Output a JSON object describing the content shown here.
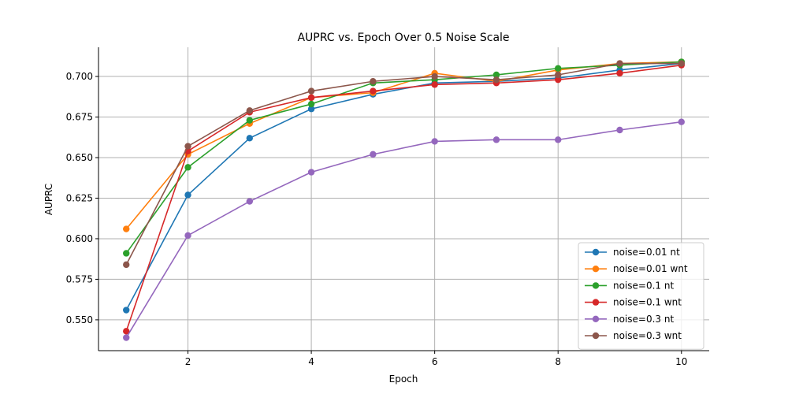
{
  "chart_data": {
    "type": "line",
    "title": "AUPRC vs. Epoch Over 0.5 Noise Scale",
    "xlabel": "Epoch",
    "ylabel": "AUPRC",
    "xlim": [
      0.55,
      10.45
    ],
    "ylim": [
      0.531,
      0.718
    ],
    "x_ticks": [
      2,
      4,
      6,
      8,
      10
    ],
    "y_ticks": [
      0.55,
      0.575,
      0.6,
      0.625,
      0.65,
      0.675,
      0.7
    ],
    "grid": true,
    "legend_position": "lower-right",
    "x": [
      1,
      2,
      3,
      4,
      5,
      6,
      7,
      8,
      9,
      10
    ],
    "series": [
      {
        "name": "noise=0.01 nt",
        "color": "#1f77b4",
        "values": [
          0.556,
          0.627,
          0.662,
          0.68,
          0.689,
          0.696,
          0.697,
          0.699,
          0.704,
          0.708
        ]
      },
      {
        "name": "noise=0.01 wnt",
        "color": "#ff7f0e",
        "values": [
          0.606,
          0.652,
          0.671,
          0.687,
          0.69,
          0.702,
          0.697,
          0.704,
          0.708,
          0.709
        ]
      },
      {
        "name": "noise=0.1 nt",
        "color": "#2ca02c",
        "values": [
          0.591,
          0.644,
          0.673,
          0.683,
          0.696,
          0.698,
          0.701,
          0.705,
          0.707,
          0.709
        ]
      },
      {
        "name": "noise=0.1 wnt",
        "color": "#d62728",
        "values": [
          0.543,
          0.654,
          0.678,
          0.687,
          0.691,
          0.695,
          0.696,
          0.698,
          0.702,
          0.707
        ]
      },
      {
        "name": "noise=0.3 nt",
        "color": "#9467bd",
        "values": [
          0.539,
          0.602,
          0.623,
          0.641,
          0.652,
          0.66,
          0.661,
          0.661,
          0.667,
          0.672
        ]
      },
      {
        "name": "noise=0.3 wnt",
        "color": "#8c564b",
        "values": [
          0.584,
          0.657,
          0.679,
          0.691,
          0.697,
          0.7,
          0.698,
          0.701,
          0.708,
          0.708
        ]
      }
    ]
  }
}
